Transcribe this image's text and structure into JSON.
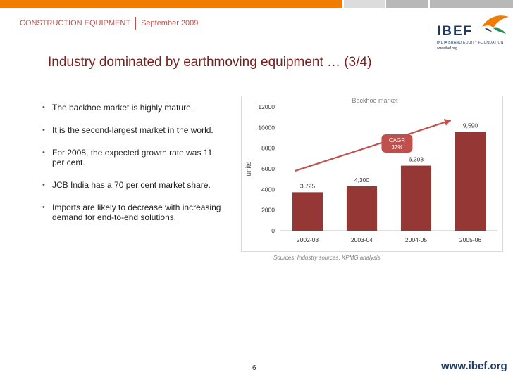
{
  "header": {
    "section": "CONSTRUCTION EQUIPMENT",
    "date": "September 2009"
  },
  "brand": {
    "name": "IBEF",
    "tagline": "INDIA BRAND EQUITY FOUNDATION",
    "url_small": "www.ibef.org",
    "footer_url": "www.ibef.org"
  },
  "slide": {
    "title": "Industry dominated by earthmoving equipment … (3/4)",
    "bullets": [
      "The backhoe market is highly mature.",
      "It is the second-largest market in the world.",
      "For 2008, the expected growth rate was 11 per cent.",
      "JCB India has a 70 per cent market share.",
      "Imports are likely to decrease with increasing demand for end-to-end solutions."
    ],
    "sources": "Sources: Industry sources, KPMG analysis",
    "page_number": "6"
  },
  "chart_data": {
    "type": "bar",
    "title": "Backhoe market",
    "xlabel": "",
    "ylabel": "units",
    "categories": [
      "2002-03",
      "2003-04",
      "2004-05",
      "2005-06"
    ],
    "values": [
      3725,
      4300,
      6303,
      9590
    ],
    "value_labels": [
      "3,725",
      "4,300",
      "6,303",
      "9,590"
    ],
    "ylim": [
      0,
      12000
    ],
    "yticks": [
      "0",
      "2000",
      "4000",
      "6000",
      "8000",
      "10000",
      "12000"
    ],
    "ytick_values": [
      0,
      2000,
      4000,
      6000,
      8000,
      10000,
      12000
    ],
    "grid": false,
    "legend": "none",
    "annotation": {
      "label": "CAGR",
      "value": "37%",
      "from_category": 0,
      "from_value": 5800,
      "to_category": 3,
      "to_value": 10700
    },
    "colors": {
      "bar": "#953735",
      "arrow": "#c0504d",
      "badge": "#c0504d"
    }
  },
  "colors": {
    "accent": "#c0504d",
    "title": "#7a1f1f",
    "brand": "#1f3864",
    "topbar": [
      "#f07d00",
      "#f07d00",
      "#f07d00",
      "#dcdcdc",
      "#cfcfcf",
      "#c3c3c3",
      "#b8b8b8"
    ]
  }
}
